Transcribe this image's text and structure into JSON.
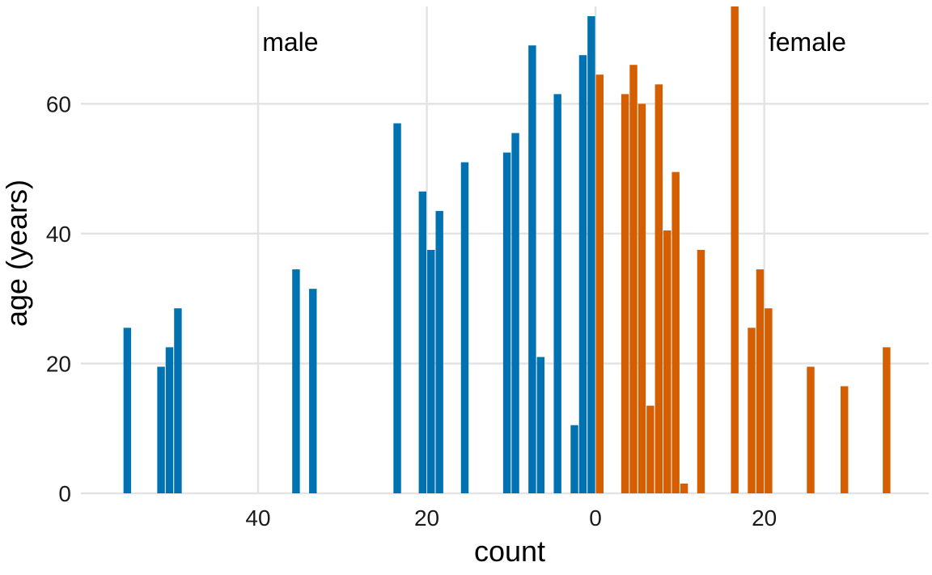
{
  "chart_data": {
    "type": "bar",
    "orientation": "vertical",
    "xlabel": "count",
    "ylabel": "age (years)",
    "x_tick_labels": [
      {
        "value": -40,
        "label": "40"
      },
      {
        "value": -20,
        "label": "20"
      },
      {
        "value": 0,
        "label": "0"
      },
      {
        "value": 20,
        "label": "20"
      }
    ],
    "y_ticks": [
      0,
      20,
      40,
      60
    ],
    "xlim": [
      -61,
      39.5
    ],
    "ylim": [
      0,
      75
    ],
    "grid": true,
    "legend": "none",
    "annotations": [
      {
        "text": "male",
        "x": -39.5,
        "y": 69.5
      },
      {
        "text": "female",
        "x": 20.5,
        "y": 69.5
      }
    ],
    "series": [
      {
        "name": "male",
        "color": "#0072b2",
        "points": [
          {
            "x": -55.5,
            "y": 25.5
          },
          {
            "x": -51.5,
            "y": 19.5
          },
          {
            "x": -50.5,
            "y": 22.5
          },
          {
            "x": -49.5,
            "y": 28.5
          },
          {
            "x": -35.5,
            "y": 34.5
          },
          {
            "x": -33.5,
            "y": 31.5
          },
          {
            "x": -23.5,
            "y": 57.0
          },
          {
            "x": -20.5,
            "y": 46.5
          },
          {
            "x": -19.5,
            "y": 37.5
          },
          {
            "x": -18.5,
            "y": 43.5
          },
          {
            "x": -15.5,
            "y": 51.0
          },
          {
            "x": -10.5,
            "y": 52.5
          },
          {
            "x": -9.5,
            "y": 55.5
          },
          {
            "x": -7.5,
            "y": 69.0
          },
          {
            "x": -6.5,
            "y": 21.0
          },
          {
            "x": -4.5,
            "y": 61.5
          },
          {
            "x": -2.5,
            "y": 10.5
          },
          {
            "x": -1.5,
            "y": 67.5
          },
          {
            "x": -0.5,
            "y": 73.5
          }
        ]
      },
      {
        "name": "female",
        "color": "#d55e00",
        "points": [
          {
            "x": 0.5,
            "y": 64.5
          },
          {
            "x": 3.5,
            "y": 61.5
          },
          {
            "x": 4.5,
            "y": 66.0
          },
          {
            "x": 5.5,
            "y": 60.0
          },
          {
            "x": 6.5,
            "y": 13.5
          },
          {
            "x": 7.5,
            "y": 63.0
          },
          {
            "x": 8.5,
            "y": 40.5
          },
          {
            "x": 9.5,
            "y": 49.5
          },
          {
            "x": 10.5,
            "y": 1.5
          },
          {
            "x": 12.5,
            "y": 37.5
          },
          {
            "x": 16.5,
            "y": 75.0
          },
          {
            "x": 18.5,
            "y": 25.5
          },
          {
            "x": 19.5,
            "y": 34.5
          },
          {
            "x": 20.5,
            "y": 28.5
          },
          {
            "x": 25.5,
            "y": 19.5
          },
          {
            "x": 29.5,
            "y": 16.5
          },
          {
            "x": 34.5,
            "y": 22.5
          }
        ]
      }
    ]
  }
}
